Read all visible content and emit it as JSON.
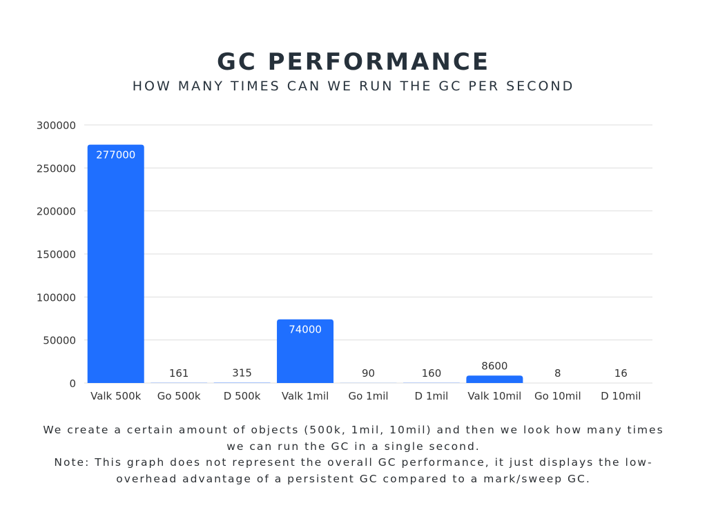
{
  "colors": {
    "bar": "#1f6fff",
    "grid": "#dddddd",
    "axis_text": "#333333",
    "label_inside": "#ffffff",
    "label_outside": "#333333"
  },
  "caption": {
    "line1": "We create a certain amount of objects (500k, 1mil, 10mil) and then we look how many times we can run the GC in a single second.",
    "line2": "Note: This graph does not represent the overall GC performance, it just displays the low-overhead advantage of a persistent GC compared to a mark/sweep GC."
  },
  "chart_data": {
    "type": "bar",
    "title": "GC PERFORMANCE",
    "subtitle": "HOW MANY TIMES CAN WE RUN THE GC PER SECOND",
    "xlabel": "",
    "ylabel": "",
    "categories": [
      "Valk 500k",
      "Go 500k",
      "D 500k",
      "Valk 1mil",
      "Go 1mil",
      "D 1mil",
      "Valk 10mil",
      "Go 10mil",
      "D 10mil"
    ],
    "values": [
      277000,
      161,
      315,
      74000,
      90,
      160,
      8600,
      8,
      16
    ],
    "data_labels": [
      "277000",
      "161",
      "315",
      "74000",
      "90",
      "160",
      "8600",
      "8",
      "16"
    ],
    "ylim": [
      0,
      300000
    ],
    "yticks": [
      0,
      50000,
      100000,
      150000,
      200000,
      250000,
      300000
    ],
    "ytick_labels": [
      "0",
      "50000",
      "100000",
      "150000",
      "200000",
      "250000",
      "300000"
    ],
    "grid": true,
    "legend": "none"
  }
}
